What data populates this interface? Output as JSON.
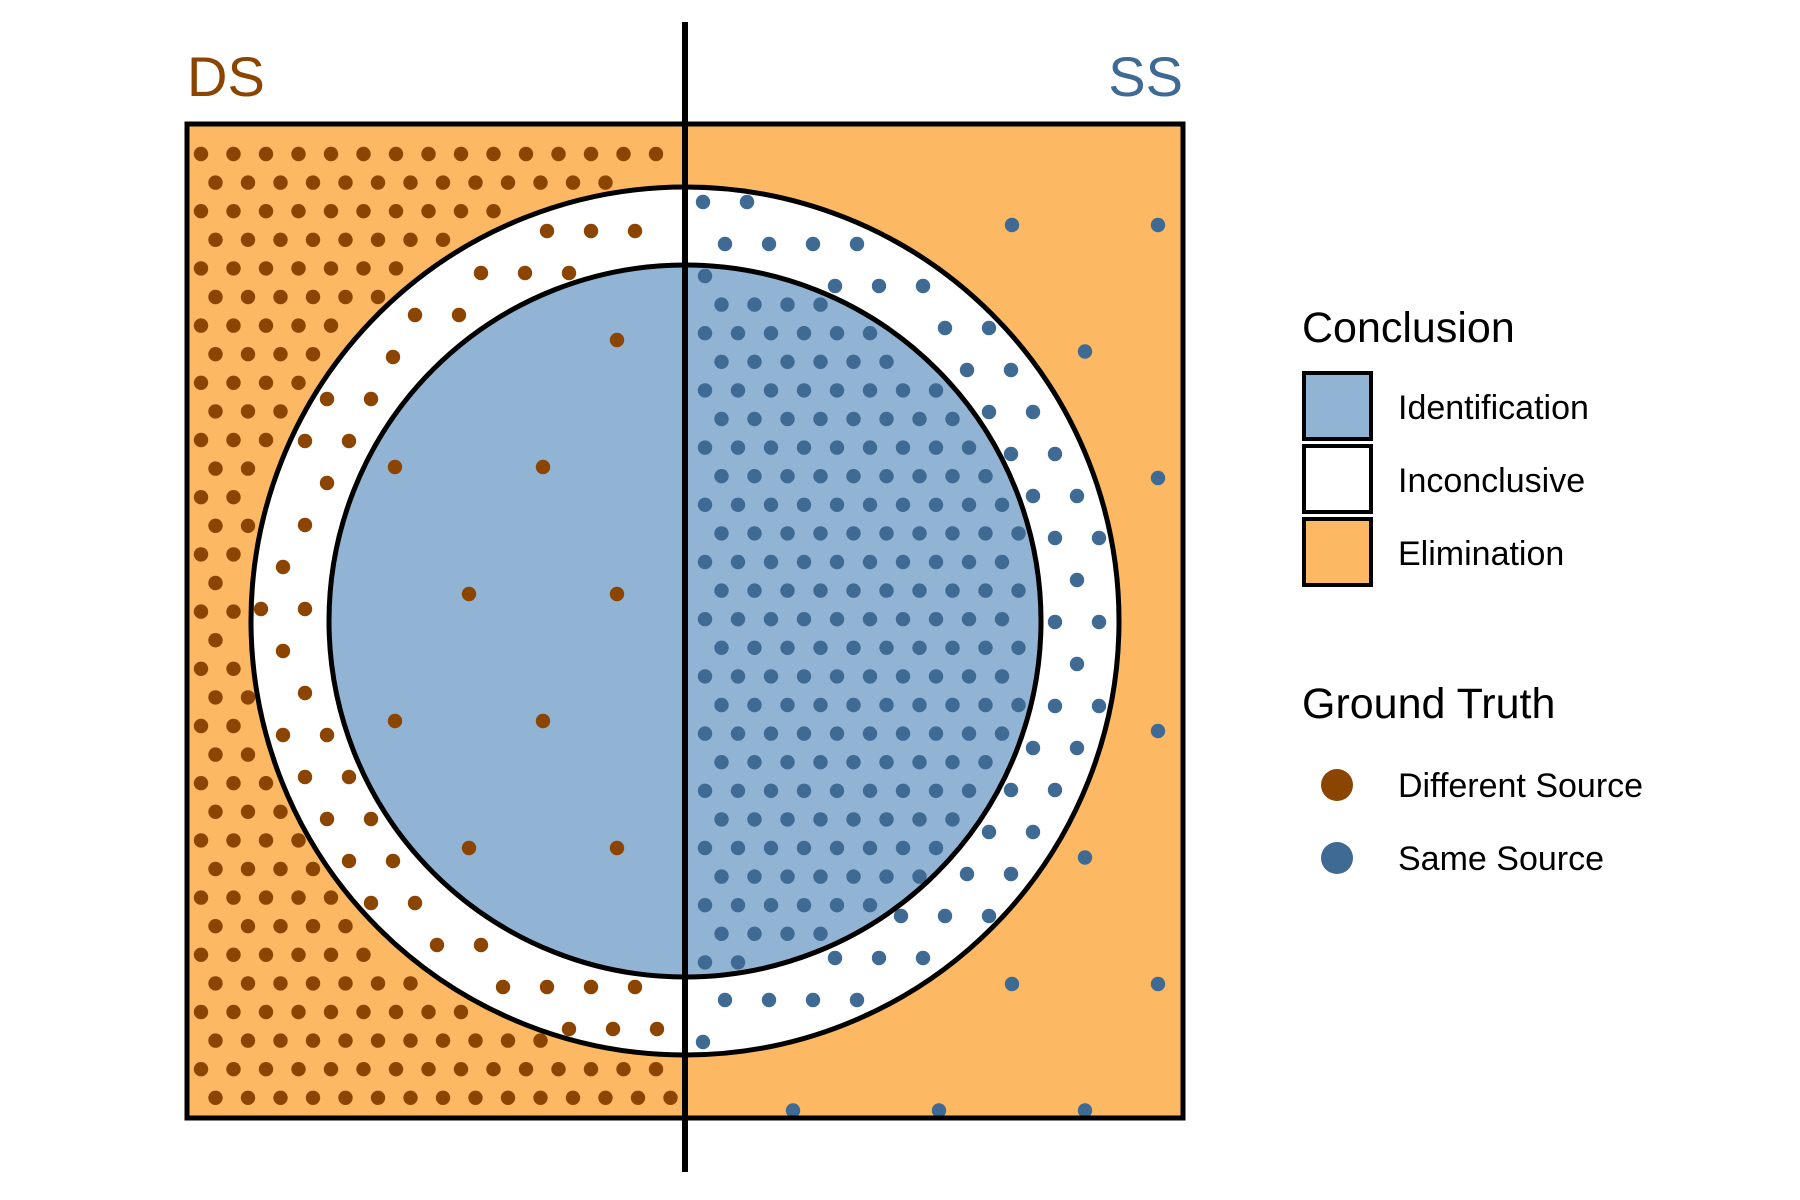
{
  "labels": {
    "left": "DS",
    "right": "SS"
  },
  "colors": {
    "different_source": "#8B4500",
    "same_source": "#3E6A93",
    "identification": "#92B4D4",
    "inconclusive": "#FFFFFF",
    "elimination": "#FDB863",
    "outline": "#000000"
  },
  "dot_density": {
    "different_source": {
      "elimination": "dense",
      "inconclusive": "medium",
      "identification": "sparse"
    },
    "same_source": {
      "identification": "dense",
      "inconclusive": "medium",
      "elimination": "sparse"
    }
  },
  "legend": {
    "conclusion": {
      "title": "Conclusion",
      "items": [
        {
          "label": "Identification",
          "color": "#92B4D4"
        },
        {
          "label": "Inconclusive",
          "color": "#FFFFFF"
        },
        {
          "label": "Elimination",
          "color": "#FDB863"
        }
      ]
    },
    "ground_truth": {
      "title": "Ground Truth",
      "items": [
        {
          "label": "Different Source",
          "color": "#8B4500"
        },
        {
          "label": "Same Source",
          "color": "#3E6A93"
        }
      ]
    }
  }
}
